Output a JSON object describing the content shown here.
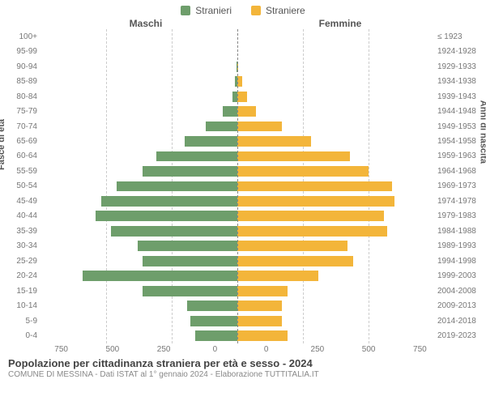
{
  "legend": {
    "male": {
      "label": "Stranieri",
      "color": "#6e9e6b"
    },
    "female": {
      "label": "Straniere",
      "color": "#f3b53a"
    }
  },
  "headers": {
    "left": "Maschi",
    "right": "Femmine"
  },
  "y_titles": {
    "left": "Fasce di età",
    "right": "Anni di nascita"
  },
  "x_axis": {
    "max": 750,
    "ticks_left": [
      "750",
      "500",
      "250",
      "0"
    ],
    "ticks_right": [
      "0",
      "250",
      "500",
      "750"
    ]
  },
  "categories": [
    {
      "age": "100+",
      "birth": "≤ 1923",
      "m": 0,
      "f": 0
    },
    {
      "age": "95-99",
      "birth": "1924-1928",
      "m": 0,
      "f": 0
    },
    {
      "age": "90-94",
      "birth": "1929-1933",
      "m": 2,
      "f": 3
    },
    {
      "age": "85-89",
      "birth": "1934-1938",
      "m": 8,
      "f": 18
    },
    {
      "age": "80-84",
      "birth": "1939-1943",
      "m": 18,
      "f": 38
    },
    {
      "age": "75-79",
      "birth": "1944-1948",
      "m": 55,
      "f": 70
    },
    {
      "age": "70-74",
      "birth": "1949-1953",
      "m": 120,
      "f": 170
    },
    {
      "age": "65-69",
      "birth": "1954-1958",
      "m": 200,
      "f": 280
    },
    {
      "age": "60-64",
      "birth": "1959-1963",
      "m": 310,
      "f": 430
    },
    {
      "age": "55-59",
      "birth": "1964-1968",
      "m": 360,
      "f": 500
    },
    {
      "age": "50-54",
      "birth": "1969-1973",
      "m": 460,
      "f": 590
    },
    {
      "age": "45-49",
      "birth": "1974-1978",
      "m": 520,
      "f": 600
    },
    {
      "age": "40-44",
      "birth": "1979-1983",
      "m": 540,
      "f": 560
    },
    {
      "age": "35-39",
      "birth": "1984-1988",
      "m": 480,
      "f": 570
    },
    {
      "age": "30-34",
      "birth": "1989-1993",
      "m": 380,
      "f": 420
    },
    {
      "age": "25-29",
      "birth": "1994-1998",
      "m": 360,
      "f": 440
    },
    {
      "age": "20-24",
      "birth": "1999-2003",
      "m": 590,
      "f": 310
    },
    {
      "age": "15-19",
      "birth": "2004-2008",
      "m": 360,
      "f": 190
    },
    {
      "age": "10-14",
      "birth": "2009-2013",
      "m": 190,
      "f": 170
    },
    {
      "age": "5-9",
      "birth": "2014-2018",
      "m": 180,
      "f": 170
    },
    {
      "age": "0-4",
      "birth": "2019-2023",
      "m": 160,
      "f": 190
    }
  ],
  "grid": {
    "color": "#cccccc",
    "dash": true
  },
  "footer": {
    "title": "Popolazione per cittadinanza straniera per età e sesso - 2024",
    "subtitle": "COMUNE DI MESSINA - Dati ISTAT al 1° gennaio 2024 - Elaborazione TUTTITALIA.IT"
  },
  "colors": {
    "male_bar": "#6e9e6b",
    "female_bar": "#f3b53a",
    "background": "#ffffff",
    "text": "#555555"
  },
  "chart_type": "population-pyramid"
}
